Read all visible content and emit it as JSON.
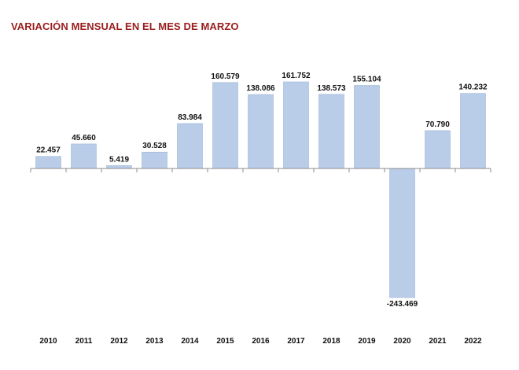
{
  "chart_data": {
    "type": "bar",
    "title": "VARIACIÓN MENSUAL EN EL MES DE MARZO",
    "xlabel": "",
    "ylabel": "",
    "categories": [
      "2010",
      "2011",
      "2012",
      "2013",
      "2014",
      "2015",
      "2016",
      "2017",
      "2018",
      "2019",
      "2020",
      "2021",
      "2022"
    ],
    "values": [
      22457,
      45660,
      5419,
      30528,
      83984,
      160579,
      138086,
      161752,
      138573,
      155104,
      -243469,
      70790,
      140232
    ],
    "value_labels": [
      "22.457",
      "45.660",
      "5.419",
      "30.528",
      "83.984",
      "160.579",
      "138.086",
      "161.752",
      "138.573",
      "155.104",
      "-243.469",
      "70.790",
      "140.232"
    ],
    "ylim": [
      -243469,
      161752
    ],
    "grid": false,
    "legend": "none",
    "colors": {
      "bar": "#b9cde8",
      "bar_stroke": "#9db6d9",
      "axis": "#8c8c8c",
      "title": "#9b1c1c"
    }
  }
}
